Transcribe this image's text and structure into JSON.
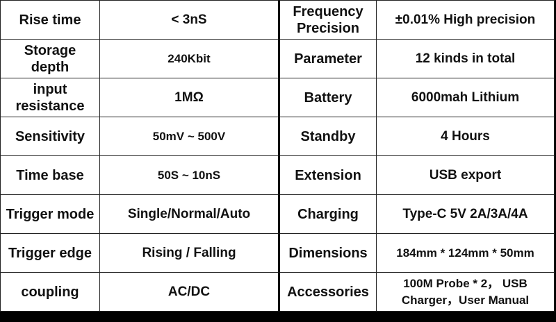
{
  "rows": [
    {
      "k1": "Rise time",
      "v1": "< 3nS",
      "k2": "Frequency Precision",
      "v2": "±0.01% High precision"
    },
    {
      "k1": "Storage depth",
      "v1": "240Kbit",
      "k2": "Parameter",
      "v2": "12 kinds in total"
    },
    {
      "k1": "input resistance",
      "v1": "1MΩ",
      "k2": "Battery",
      "v2": "6000mah Lithium"
    },
    {
      "k1": "Sensitivity",
      "v1": "50mV ~ 500V",
      "k2": "Standby",
      "v2": "4  Hours"
    },
    {
      "k1": "Time base",
      "v1": "50S ~ 10nS",
      "k2": "Extension",
      "v2": "USB export"
    },
    {
      "k1": "Trigger mode",
      "v1": "Single/Normal/Auto",
      "k2": "Charging",
      "v2": "Type-C  5V 2A/3A/4A"
    },
    {
      "k1": "Trigger edge",
      "v1": "Rising / Falling",
      "k2": "Dimensions",
      "v2": "184mm * 124mm * 50mm"
    },
    {
      "k1": "coupling",
      "v1": "AC/DC",
      "k2": "Accessories",
      "v2": "100M Probe * 2， USB Charger，User Manual"
    }
  ]
}
